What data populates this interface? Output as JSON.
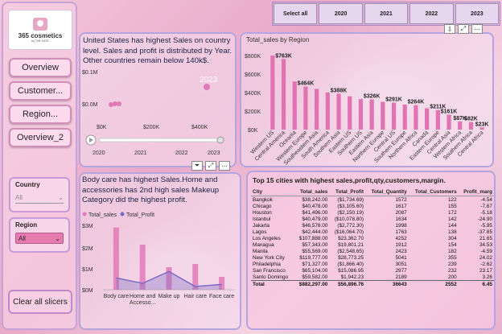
{
  "logo": {
    "name": "365 cosmetics",
    "sub": "by THE KATE"
  },
  "nav": [
    "Overview",
    "Customer...",
    "Region...",
    "Overview_2"
  ],
  "slicers": {
    "country": {
      "title": "Country",
      "value": "All"
    },
    "region": {
      "title": "Region",
      "value": "All"
    }
  },
  "clear_label": "Clear all slicers",
  "years": [
    "Select all",
    "2020",
    "2021",
    "2022",
    "2023"
  ],
  "insight_top": "United States has highest Sales on country level. Sales and profit is distributed by Year. Other countries remain below 140k$.",
  "scatter": {
    "y_ticks": [
      "$0.1M",
      "$0.0M"
    ],
    "x_ticks": [
      "$0K",
      "$200K",
      "$400K"
    ],
    "year_label": "2023",
    "timeline": [
      "2020",
      "2021",
      "2022",
      "2023"
    ]
  },
  "insight_bottom": "Body care has highest Sales.Home and accessories has 2nd high sales Makeup Category did the highest profit.",
  "category_chart": {
    "legend": [
      "Total_sales",
      "Total_Profit"
    ],
    "y_ticks": [
      "$3M",
      "$2M",
      "$1M",
      "$0M"
    ],
    "categories": [
      "Body care",
      "Home and Accesso...",
      "Make up",
      "Hair care",
      "Face care"
    ],
    "sales": [
      2.9,
      2.1,
      1.05,
      1.2,
      0.6
    ],
    "profit": [
      0.55,
      0.3,
      0.85,
      0.15,
      0.25
    ],
    "colors": {
      "sales": "#e27ab7",
      "profit": "#7b6bc4"
    }
  },
  "region_chart": {
    "title": "Total_sales by Region",
    "y_ticks": [
      "$800K",
      "$600K",
      "$400K",
      "$200K",
      "$0K"
    ],
    "bar_color": "#e273b2"
  },
  "chart_data": {
    "type": "bar",
    "title": "Total_sales by Region",
    "ylim": [
      0,
      800
    ],
    "categories": [
      "Western US",
      "Central America",
      "Oceania",
      "Western Europe",
      "Southeastern Asia",
      "South America",
      "Southern Asia",
      "Eastern US",
      "Southern US",
      "Eastern Asia",
      "Northern Europe",
      "Central US",
      "Southern Europe",
      "Northern Africa",
      "Canada",
      "Eastern Europe",
      "Central Asia",
      "Western Africa",
      "Southern Africa",
      "Central Africa"
    ],
    "values": [
      800,
      763,
      520,
      464,
      440,
      400,
      388,
      360,
      330,
      326,
      300,
      291,
      270,
      264,
      230,
      211,
      161,
      87,
      82,
      23
    ],
    "labels": [
      "",
      "$763K",
      "",
      "$464K",
      "",
      "",
      "$388K",
      "",
      "",
      "$326K",
      "",
      "$291K",
      "",
      "$264K",
      "",
      "$211K",
      "$161K",
      "$87K",
      "$82K",
      "$23K"
    ],
    "xlabel": "",
    "ylabel": ""
  },
  "table": {
    "title": "Top 15 cities with highest sales,profit,qty,customers,margin.",
    "columns": [
      "City",
      "Total_sales",
      "Total_Profit",
      "Total_Quantity",
      "Total_Customers",
      "Profit_marg"
    ],
    "rows": [
      [
        "Bangkok",
        "$38,242.00",
        "($1,734.69)",
        "1572",
        "122",
        "-4.54"
      ],
      [
        "Chicago",
        "$40,478.00",
        "($3,105.60)",
        "1617",
        "155",
        "-7.67"
      ],
      [
        "Houston",
        "$41,496.00",
        "($2,150.19)",
        "2087",
        "172",
        "-5.18"
      ],
      [
        "Istanbul",
        "$40,479.00",
        "($10,078.80)",
        "1634",
        "142",
        "-24.90"
      ],
      [
        "Jakarta",
        "$46,578.00",
        "($2,772.30)",
        "1998",
        "144",
        "-5.95"
      ],
      [
        "Lagos",
        "$42,444.00",
        "($16,064.70)",
        "1763",
        "138",
        "-37.85"
      ],
      [
        "Los Angeles",
        "$107,888.00",
        "$23,362.70",
        "4252",
        "304",
        "21.65"
      ],
      [
        "Managua",
        "$57,343.00",
        "$19,801.21",
        "1912",
        "154",
        "34.53"
      ],
      [
        "Manila",
        "$55,569.00",
        "($2,548.65)",
        "2423",
        "182",
        "-4.59"
      ],
      [
        "New York City",
        "$119,777.00",
        "$28,773.25",
        "5041",
        "355",
        "24.02"
      ],
      [
        "Philadelphia",
        "$71,327.00",
        "($1,866.40)",
        "3051",
        "239",
        "-2.62"
      ],
      [
        "San Francisco",
        "$65,104.00",
        "$15,086.95",
        "2977",
        "232",
        "23.17"
      ],
      [
        "Santo Domingo",
        "$59,582.00",
        "$1,942.23",
        "2189",
        "200",
        "3.26"
      ]
    ],
    "total": [
      "Total",
      "$882,297.00",
      "$56,896.76",
      "36643",
      "2552",
      "6.45"
    ]
  }
}
